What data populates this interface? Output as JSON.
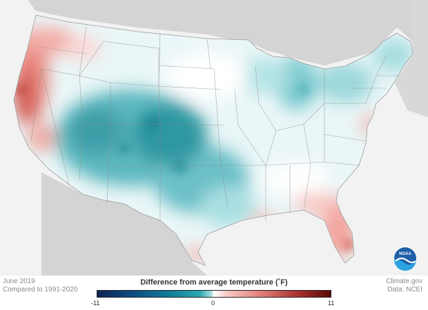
{
  "map": {
    "title_left": "June 2019",
    "subtitle_left": "Compared to 1991-2020",
    "source_right": "Climate.gov",
    "data_right": "Data: NCEI",
    "logo_text": "NOAA"
  },
  "legend": {
    "title": "Difference from average temperature  (˚F)",
    "min_label": "-11",
    "mid_label": "0",
    "max_label": "11",
    "range": [
      -11,
      11
    ],
    "colors": {
      "cold_extreme": "#0d2554",
      "cold": "#2aa8b0",
      "neutral": "#ffffff",
      "warm": "#e27f78",
      "warm_extreme": "#5a0909"
    }
  }
}
